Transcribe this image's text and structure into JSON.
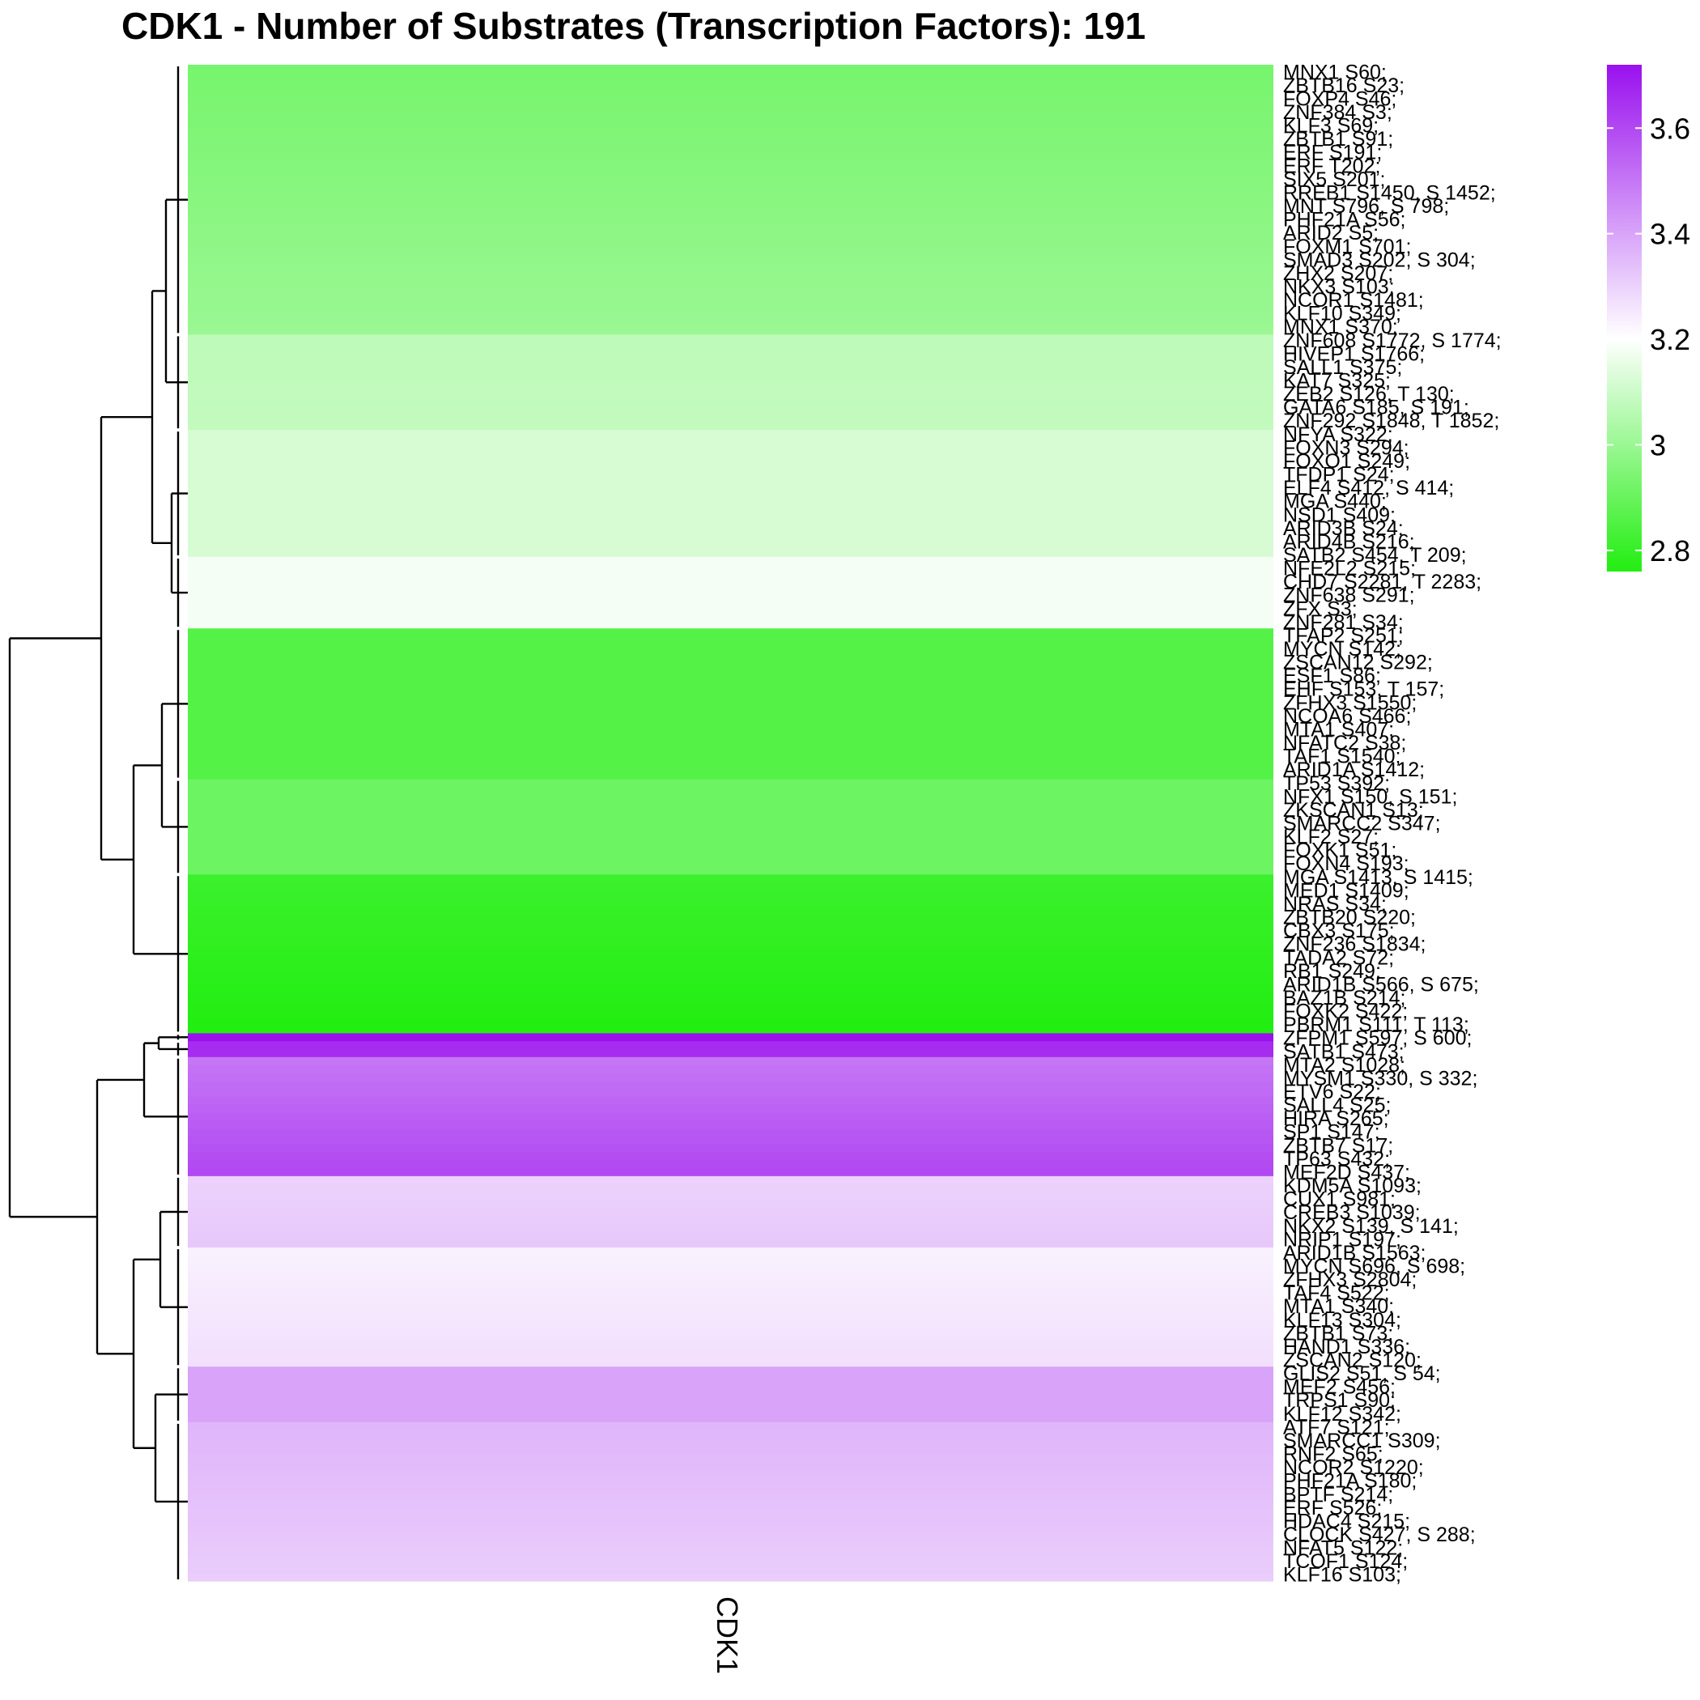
{
  "chart_data": {
    "type": "heatmap",
    "title": "CDK1 - Number of Substrates (Transcription Factors): 191",
    "columns": [
      "CDK1"
    ],
    "legend": {
      "position": "top-right",
      "ticks": [
        "3.6",
        "3.4",
        "3.2",
        "3",
        "2.8"
      ],
      "tick_values": [
        3.6,
        3.4,
        3.2,
        3.0,
        2.8
      ],
      "range": [
        2.76,
        3.72
      ],
      "colors": {
        "low": "#22ee11",
        "mid": "#ffffff",
        "high": "#9a11ee"
      }
    },
    "dendrogram": "left",
    "row_count": 191,
    "row_labels": [
      "MNX1 S60;",
      "ZBTB16 S23;",
      "FOXP4 S46;",
      "ZNF384 S3;",
      "KLF3 S69;",
      "ZBTB1 S91;",
      "ERF S191;",
      "ERF T202;",
      "SIX5 S201;",
      "RREB1 S1450, S 1452;",
      "MNT S796, S 798;",
      "PHF21A S56;",
      "ARID2 S5;",
      "FOXM1 S701;",
      "SMAD3 S202, S 304;",
      "ZHX2 S207;",
      "NKX3 S103;",
      "NCOR1 S1481;",
      "KLF10 S349;",
      "MNX1 S370;",
      "ZNF608 S1772, S 1774;",
      "HIVEP1 S1766;",
      "SALL1 S375;",
      "KAT7 S325;",
      "ZEB2 S126, T 130;",
      "GATA6 S185, S 191;",
      "ZNF292 S1848, T 1852;",
      "NFYA S322;",
      "FOXN3 S294;",
      "FOXO1 S249;",
      "TFDP1 S24;",
      "ELF4 S412, S 414;",
      "MGA S440;",
      "NSD1 S409;",
      "ARID3B S24;",
      "ARID4B S216;",
      "SATB2 S454, T 209;",
      "NFE2L2 S215;",
      "CHD7 S2281, T 2283;",
      "ZNF638 S291;",
      "ZFX S3;",
      "ZNF281 S34;",
      "TFAP2 S251;",
      "MYCN S142;",
      "ZSCAN12 S292;",
      "ESF1 S86;",
      "EHF S153, T 157;",
      "ZFHX3 S1550;",
      "NCOA6 S466;",
      "MTA1 S407;",
      "NFATC2 S38;",
      "TAF1 S1540;",
      "ARID1A S1412;",
      "TP53 S392;",
      "NFX1 S150, S 151;",
      "ZKSCAN1 S13;",
      "SMARCC2 S347;",
      "KLF2 S27;",
      "FOXK1 S51;",
      "FOXN4 S193;",
      "MGA S1413, S 1415;",
      "MED1 S1409;",
      "NRAS S34;",
      "ZBTB20 S220;",
      "CBX3 S175;",
      "ZNF236 S1834;",
      "TADA2 S72;",
      "RB1 S249;",
      "ARID1B S566, S 675;",
      "BAZ1B S214;",
      "FOXK2 S422;",
      "PBRM1 S111, T 113;",
      "ZFPM1 S597, S 600;",
      "SATB1 S473;",
      "MTA2 S1028;",
      "MYSM1 S330, S 332;",
      "ETV6 S22;",
      "SALL4 S25;",
      "HIRA S265;",
      "SP1 S147;",
      "ZBTB7 S17;",
      "TP63 S432;",
      "MEF2D S437;",
      "KDM5A S1093;",
      "CUX1 S981;",
      "CREB3 S1039;",
      "NKX2 S139, S 141;",
      "NRIP1 S197;",
      "ARID1B S1563;",
      "MYCN S696, S 698;",
      "ZFHX3 S2804;",
      "TAF4 S522;",
      "MTA1 S340;",
      "KLF13 S304;",
      "ZBTB1 S73;",
      "HAND1 S336;",
      "ZSCAN2 S120;",
      "GLIS2 S51, S 54;",
      "MEF2 S456;",
      "TRPS1 S90;",
      "KLF12 S342;",
      "ATF7 S121;",
      "SMARCC1 S309;",
      "RNF2 S65;",
      "NCOR2 S1220;",
      "PHF21A S180;",
      "BPTF S214;",
      "ERF S526;",
      "HDAC4 S215;",
      "CLOCK S427, S 288;",
      "NFAT5 S122;",
      "TCOF1 S124;",
      "KLF16 S103;"
    ],
    "clusters": [
      {
        "rows": 34,
        "start_value": 2.93,
        "end_value": 3.0
      },
      {
        "rows": 12,
        "start_value": 3.07,
        "end_value": 3.08
      },
      {
        "rows": 16,
        "start_value": 3.12,
        "end_value": 3.12
      },
      {
        "rows": 9,
        "start_value": 3.18,
        "end_value": 3.18
      },
      {
        "rows": 19,
        "start_value": 2.86,
        "end_value": 2.86
      },
      {
        "rows": 12,
        "start_value": 2.91,
        "end_value": 2.91
      },
      {
        "rows": 20,
        "start_value": 2.81,
        "end_value": 2.76
      },
      {
        "rows": 1,
        "start_value": 3.72,
        "end_value": 3.72
      },
      {
        "rows": 2,
        "start_value": 3.66,
        "end_value": 3.66
      },
      {
        "rows": 15,
        "start_value": 3.5,
        "end_value": 3.6
      },
      {
        "rows": 9,
        "start_value": 3.3,
        "end_value": 3.32
      },
      {
        "rows": 15,
        "start_value": 3.23,
        "end_value": 3.27
      },
      {
        "rows": 7,
        "start_value": 3.4,
        "end_value": 3.4
      },
      {
        "rows": 20,
        "start_value": 3.36,
        "end_value": 3.31
      }
    ]
  }
}
